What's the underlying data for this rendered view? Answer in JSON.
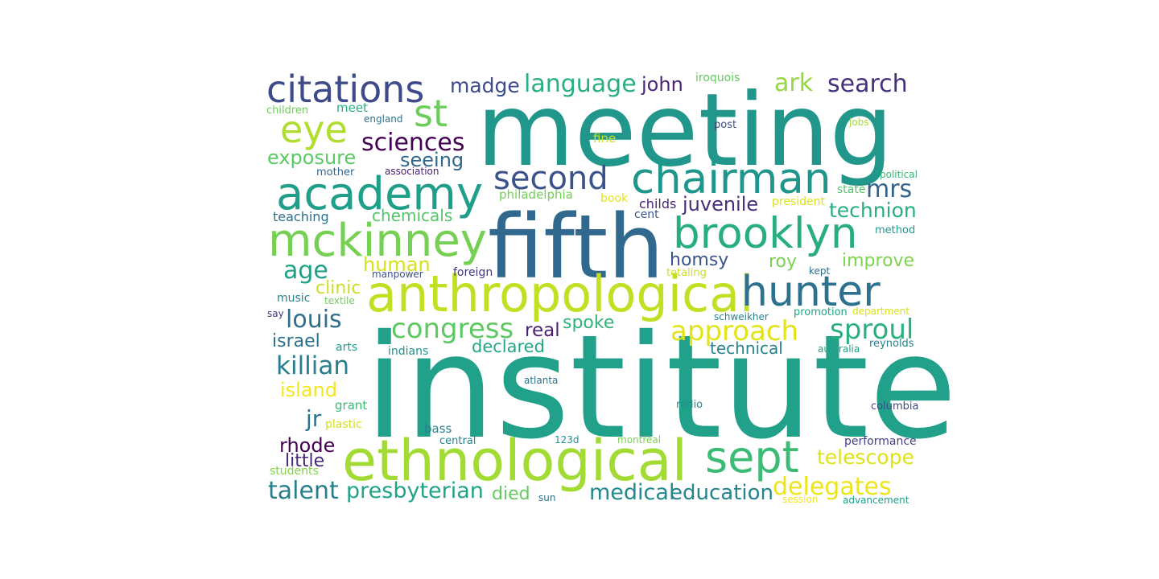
{
  "word_cloud": {
    "words": [
      {
        "text": "institute",
        "color": "#21a08a"
      },
      {
        "text": "meeting",
        "color": "#21978b"
      },
      {
        "text": "fifth",
        "color": "#30688e"
      },
      {
        "text": "ethnological",
        "color": "#a2db34"
      },
      {
        "text": "anthropological",
        "color": "#c2df23"
      },
      {
        "text": "chairman",
        "color": "#1f968b"
      },
      {
        "text": "brooklyn",
        "color": "#27ad81"
      },
      {
        "text": "academy",
        "color": "#1f9e89"
      },
      {
        "text": "mckinney",
        "color": "#75d054"
      },
      {
        "text": "hunter",
        "color": "#2c718e"
      },
      {
        "text": "sept",
        "color": "#3bbb75"
      },
      {
        "text": "citations",
        "color": "#3e4a89"
      },
      {
        "text": "eye",
        "color": "#b0dd2f"
      },
      {
        "text": "st",
        "color": "#6ccd5a"
      },
      {
        "text": "second",
        "color": "#3b528b"
      },
      {
        "text": "congress",
        "color": "#5ec962"
      },
      {
        "text": "approach",
        "color": "#e3e418"
      },
      {
        "text": "sproul",
        "color": "#2ab07f"
      },
      {
        "text": "delegates",
        "color": "#ece51b"
      },
      {
        "text": "language",
        "color": "#2ab07f"
      },
      {
        "text": "sciences",
        "color": "#440154"
      },
      {
        "text": "killian",
        "color": "#287d8e"
      },
      {
        "text": "presbyterian",
        "color": "#20a486"
      },
      {
        "text": "talent",
        "color": "#277f8e"
      },
      {
        "text": "medical",
        "color": "#23898e"
      },
      {
        "text": "education",
        "color": "#25848e"
      },
      {
        "text": "louis",
        "color": "#2e6e8e"
      },
      {
        "text": "ark",
        "color": "#95d840"
      },
      {
        "text": "search",
        "color": "#46307e"
      },
      {
        "text": "mrs",
        "color": "#33638d"
      },
      {
        "text": "technion",
        "color": "#29af7f"
      },
      {
        "text": "age",
        "color": "#1fa187"
      },
      {
        "text": "madge",
        "color": "#3e4a89"
      },
      {
        "text": "exposure",
        "color": "#5cc863"
      },
      {
        "text": "telescope",
        "color": "#dde318"
      },
      {
        "text": "juvenile",
        "color": "#472d7b"
      },
      {
        "text": "human",
        "color": "#d5e21a"
      },
      {
        "text": "homsy",
        "color": "#3a548c"
      },
      {
        "text": "roy",
        "color": "#7ad151"
      },
      {
        "text": "improve",
        "color": "#7fd34e"
      },
      {
        "text": "seeing",
        "color": "#31688e"
      },
      {
        "text": "john",
        "color": "#482576"
      },
      {
        "text": "real",
        "color": "#481f70"
      },
      {
        "text": "rhode",
        "color": "#440154"
      },
      {
        "text": "island",
        "color": "#f4e61e"
      },
      {
        "text": "israel",
        "color": "#2c728e"
      },
      {
        "text": "jr",
        "color": "#2c738e"
      },
      {
        "text": "little",
        "color": "#482878"
      },
      {
        "text": "clinic",
        "color": "#ccdf23"
      },
      {
        "text": "spoke",
        "color": "#2fb47c"
      },
      {
        "text": "died",
        "color": "#63cb5f"
      },
      {
        "text": "declared",
        "color": "#22a884"
      },
      {
        "text": "technical",
        "color": "#26828e"
      },
      {
        "text": "chemicals",
        "color": "#54c568"
      },
      {
        "text": "teaching",
        "color": "#2d708e"
      },
      {
        "text": "meet",
        "color": "#28ae80"
      },
      {
        "text": "mother",
        "color": "#33638d"
      },
      {
        "text": "children",
        "color": "#6ece58"
      },
      {
        "text": "england",
        "color": "#2c728e"
      },
      {
        "text": "association",
        "color": "#482173"
      },
      {
        "text": "philadelphia",
        "color": "#74d055"
      },
      {
        "text": "book",
        "color": "#e5e419"
      },
      {
        "text": "fine",
        "color": "#c8e020"
      },
      {
        "text": "childs",
        "color": "#482475"
      },
      {
        "text": "cent",
        "color": "#3a548c"
      },
      {
        "text": "iroquois",
        "color": "#63cb5f"
      },
      {
        "text": "post",
        "color": "#3e4989"
      },
      {
        "text": "jobs",
        "color": "#a5db36"
      },
      {
        "text": "political",
        "color": "#35b779"
      },
      {
        "text": "state",
        "color": "#52c569"
      },
      {
        "text": "president",
        "color": "#dae319"
      },
      {
        "text": "method",
        "color": "#1f9a8a"
      },
      {
        "text": "kept",
        "color": "#2d708e"
      },
      {
        "text": "totaling",
        "color": "#c8e020"
      },
      {
        "text": "foreign",
        "color": "#453581"
      },
      {
        "text": "manpower",
        "color": "#3b528b"
      },
      {
        "text": "music",
        "color": "#25848e"
      },
      {
        "text": "textile",
        "color": "#6ccd5a"
      },
      {
        "text": "say",
        "color": "#453781"
      },
      {
        "text": "schweikher",
        "color": "#26828e"
      },
      {
        "text": "promotion",
        "color": "#22a884"
      },
      {
        "text": "department",
        "color": "#d8e219"
      },
      {
        "text": "reynolds",
        "color": "#26828e"
      },
      {
        "text": "australia",
        "color": "#20a386"
      },
      {
        "text": "arts",
        "color": "#1f9e89"
      },
      {
        "text": "indians",
        "color": "#20928c"
      },
      {
        "text": "atlanta",
        "color": "#2c728e"
      },
      {
        "text": "grant",
        "color": "#3bbb75"
      },
      {
        "text": "plastic",
        "color": "#d2e21b"
      },
      {
        "text": "radio",
        "color": "#21908d"
      },
      {
        "text": "columbia",
        "color": "#3e4a89"
      },
      {
        "text": "bass",
        "color": "#26828e"
      },
      {
        "text": "central",
        "color": "#24868e"
      },
      {
        "text": "123d",
        "color": "#20928c"
      },
      {
        "text": "montreal",
        "color": "#7ad151"
      },
      {
        "text": "performance",
        "color": "#433e85"
      },
      {
        "text": "students",
        "color": "#84d44b"
      },
      {
        "text": "sun",
        "color": "#2c728e"
      },
      {
        "text": "session",
        "color": "#f1e51d"
      },
      {
        "text": "advancement",
        "color": "#1fa187"
      }
    ]
  }
}
